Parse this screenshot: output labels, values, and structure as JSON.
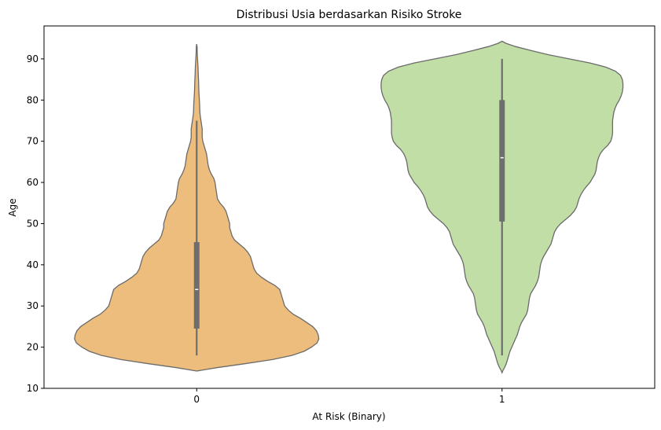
{
  "chart_data": {
    "type": "violin",
    "title": "Distribusi Usia berdasarkan Risiko Stroke",
    "xlabel": "At Risk (Binary)",
    "ylabel": "Age",
    "categories": [
      "0",
      "1"
    ],
    "ylim": [
      10,
      98
    ],
    "yticks": [
      10,
      20,
      30,
      40,
      50,
      60,
      70,
      80,
      90
    ],
    "grid": false,
    "legend": "none",
    "series": [
      {
        "category": "0",
        "color": "#EDBD7E",
        "density_max_halfwidth_fraction": 0.4,
        "density": [
          [
            14.2,
            0.0
          ],
          [
            15,
            0.16
          ],
          [
            16,
            0.4
          ],
          [
            17,
            0.62
          ],
          [
            18,
            0.78
          ],
          [
            19,
            0.88
          ],
          [
            20,
            0.94
          ],
          [
            21,
            0.985
          ],
          [
            22,
            1.0
          ],
          [
            23,
            0.995
          ],
          [
            24,
            0.98
          ],
          [
            25,
            0.95
          ],
          [
            26,
            0.9
          ],
          [
            27,
            0.85
          ],
          [
            28,
            0.79
          ],
          [
            29,
            0.75
          ],
          [
            30,
            0.72
          ],
          [
            31,
            0.71
          ],
          [
            32,
            0.7
          ],
          [
            33,
            0.69
          ],
          [
            34,
            0.68
          ],
          [
            35,
            0.64
          ],
          [
            36,
            0.58
          ],
          [
            37,
            0.53
          ],
          [
            38,
            0.49
          ],
          [
            39,
            0.47
          ],
          [
            40,
            0.46
          ],
          [
            41,
            0.45
          ],
          [
            42,
            0.44
          ],
          [
            43,
            0.42
          ],
          [
            44,
            0.39
          ],
          [
            45,
            0.35
          ],
          [
            46,
            0.31
          ],
          [
            47,
            0.29
          ],
          [
            48,
            0.28
          ],
          [
            49,
            0.27
          ],
          [
            50,
            0.27
          ],
          [
            51,
            0.26
          ],
          [
            52,
            0.25
          ],
          [
            53,
            0.24
          ],
          [
            54,
            0.22
          ],
          [
            55,
            0.19
          ],
          [
            56,
            0.17
          ],
          [
            57,
            0.165
          ],
          [
            58,
            0.16
          ],
          [
            59,
            0.155
          ],
          [
            60,
            0.15
          ],
          [
            61,
            0.14
          ],
          [
            62,
            0.12
          ],
          [
            63,
            0.105
          ],
          [
            64,
            0.095
          ],
          [
            65,
            0.09
          ],
          [
            66,
            0.085
          ],
          [
            67,
            0.08
          ],
          [
            68,
            0.07
          ],
          [
            69,
            0.06
          ],
          [
            70,
            0.05
          ],
          [
            71,
            0.045
          ],
          [
            72,
            0.045
          ],
          [
            73,
            0.045
          ],
          [
            74,
            0.04
          ],
          [
            75,
            0.035
          ],
          [
            76,
            0.03
          ],
          [
            77,
            0.026
          ],
          [
            78,
            0.025
          ],
          [
            79,
            0.024
          ],
          [
            80,
            0.022
          ],
          [
            81,
            0.02
          ],
          [
            82,
            0.018
          ],
          [
            83,
            0.017
          ],
          [
            84,
            0.016
          ],
          [
            85,
            0.015
          ],
          [
            86,
            0.013
          ],
          [
            87,
            0.012
          ],
          [
            88,
            0.011
          ],
          [
            89,
            0.009
          ],
          [
            90,
            0.007
          ],
          [
            91,
            0.005
          ],
          [
            92,
            0.004
          ],
          [
            93,
            0.003
          ],
          [
            93.6,
            0.0
          ]
        ],
        "whisker_low": 18,
        "q1": 24.5,
        "median": 34,
        "q3": 45.5,
        "whisker_high": 75
      },
      {
        "category": "1",
        "color": "#C0DEA6",
        "density_max_halfwidth_fraction": 0.4,
        "density": [
          [
            13.8,
            0.0
          ],
          [
            14.5,
            0.01
          ],
          [
            15,
            0.02
          ],
          [
            16,
            0.035
          ],
          [
            17,
            0.045
          ],
          [
            18,
            0.055
          ],
          [
            19,
            0.065
          ],
          [
            20,
            0.08
          ],
          [
            21,
            0.095
          ],
          [
            22,
            0.11
          ],
          [
            23,
            0.125
          ],
          [
            24,
            0.135
          ],
          [
            25,
            0.145
          ],
          [
            26,
            0.16
          ],
          [
            27,
            0.18
          ],
          [
            28,
            0.2
          ],
          [
            29,
            0.21
          ],
          [
            30,
            0.215
          ],
          [
            31,
            0.22
          ],
          [
            32,
            0.225
          ],
          [
            33,
            0.235
          ],
          [
            34,
            0.255
          ],
          [
            35,
            0.275
          ],
          [
            36,
            0.29
          ],
          [
            37,
            0.3
          ],
          [
            38,
            0.305
          ],
          [
            39,
            0.31
          ],
          [
            40,
            0.315
          ],
          [
            41,
            0.325
          ],
          [
            42,
            0.34
          ],
          [
            43,
            0.36
          ],
          [
            44,
            0.38
          ],
          [
            45,
            0.4
          ],
          [
            46,
            0.41
          ],
          [
            47,
            0.42
          ],
          [
            48,
            0.43
          ],
          [
            49,
            0.45
          ],
          [
            50,
            0.48
          ],
          [
            51,
            0.52
          ],
          [
            52,
            0.56
          ],
          [
            53,
            0.59
          ],
          [
            54,
            0.61
          ],
          [
            55,
            0.62
          ],
          [
            56,
            0.63
          ],
          [
            57,
            0.645
          ],
          [
            58,
            0.665
          ],
          [
            59,
            0.69
          ],
          [
            60,
            0.72
          ],
          [
            61,
            0.74
          ],
          [
            62,
            0.76
          ],
          [
            63,
            0.77
          ],
          [
            64,
            0.775
          ],
          [
            65,
            0.78
          ],
          [
            66,
            0.79
          ],
          [
            67,
            0.805
          ],
          [
            68,
            0.83
          ],
          [
            69,
            0.865
          ],
          [
            70,
            0.89
          ],
          [
            71,
            0.9
          ],
          [
            72,
            0.905
          ],
          [
            73,
            0.905
          ],
          [
            74,
            0.905
          ],
          [
            75,
            0.905
          ],
          [
            76,
            0.91
          ],
          [
            77,
            0.915
          ],
          [
            78,
            0.925
          ],
          [
            79,
            0.94
          ],
          [
            80,
            0.96
          ],
          [
            81,
            0.975
          ],
          [
            82,
            0.985
          ],
          [
            83,
            0.99
          ],
          [
            84,
            0.99
          ],
          [
            85,
            0.985
          ],
          [
            86,
            0.97
          ],
          [
            87,
            0.93
          ],
          [
            88,
            0.85
          ],
          [
            89,
            0.72
          ],
          [
            90,
            0.55
          ],
          [
            91,
            0.38
          ],
          [
            92,
            0.24
          ],
          [
            93,
            0.11
          ],
          [
            93.8,
            0.03
          ],
          [
            94.3,
            0.0
          ]
        ],
        "whisker_low": 18,
        "q1": 50.5,
        "median": 66,
        "q3": 80,
        "whisker_high": 90
      }
    ]
  }
}
